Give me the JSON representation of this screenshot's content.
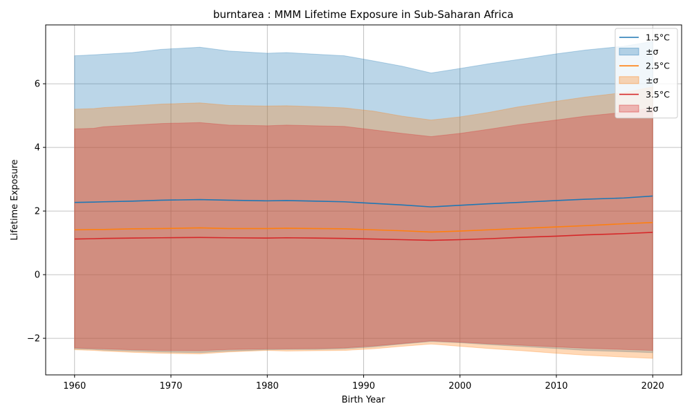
{
  "chart_data": {
    "type": "area",
    "title": "burntarea : MMM Lifetime Exposure in Sub-Saharan Africa",
    "xlabel": "Birth Year",
    "ylabel": "Lifetime Exposure",
    "xlim": [
      1957,
      2023
    ],
    "ylim": [
      -3.15,
      7.85
    ],
    "xticks": [
      1960,
      1970,
      1980,
      1990,
      2000,
      2010,
      2020
    ],
    "yticks": [
      -2,
      0,
      2,
      4,
      6
    ],
    "ytick_labels": [
      "−2",
      "0",
      "2",
      "4",
      "6"
    ],
    "grid": true,
    "legend_position": "top-right",
    "x": [
      1960,
      1962,
      1963,
      1966,
      1969,
      1973,
      1976,
      1980,
      1982,
      1985,
      1988,
      1991,
      1994,
      1997,
      2000,
      2003,
      2006,
      2010,
      2013,
      2017,
      2020
    ],
    "series": [
      {
        "name": "1.5°C",
        "color": "#1f77b4",
        "band_color": "#1f77b4",
        "mean": [
          2.27,
          2.28,
          2.29,
          2.31,
          2.34,
          2.36,
          2.34,
          2.32,
          2.33,
          2.31,
          2.29,
          2.24,
          2.19,
          2.13,
          2.18,
          2.23,
          2.27,
          2.33,
          2.37,
          2.41,
          2.47
        ],
        "upper": [
          6.88,
          6.91,
          6.93,
          6.98,
          7.08,
          7.15,
          7.03,
          6.96,
          6.98,
          6.93,
          6.88,
          6.72,
          6.55,
          6.34,
          6.48,
          6.63,
          6.76,
          6.94,
          7.06,
          7.18,
          7.33
        ],
        "lower": [
          -2.33,
          -2.35,
          -2.37,
          -2.4,
          -2.43,
          -2.45,
          -2.4,
          -2.36,
          -2.35,
          -2.35,
          -2.33,
          -2.27,
          -2.18,
          -2.1,
          -2.14,
          -2.2,
          -2.25,
          -2.32,
          -2.38,
          -2.42,
          -2.45
        ]
      },
      {
        "name": "2.5°C",
        "color": "#ff7f0e",
        "band_color": "#ff7f0e",
        "mean": [
          1.41,
          1.42,
          1.42,
          1.44,
          1.45,
          1.47,
          1.45,
          1.45,
          1.46,
          1.45,
          1.44,
          1.41,
          1.38,
          1.34,
          1.37,
          1.41,
          1.45,
          1.5,
          1.54,
          1.6,
          1.64
        ],
        "upper": [
          5.2,
          5.22,
          5.25,
          5.3,
          5.36,
          5.4,
          5.32,
          5.3,
          5.31,
          5.28,
          5.24,
          5.14,
          4.98,
          4.86,
          4.96,
          5.1,
          5.27,
          5.45,
          5.58,
          5.72,
          5.9
        ],
        "lower": [
          -2.36,
          -2.38,
          -2.4,
          -2.44,
          -2.47,
          -2.49,
          -2.43,
          -2.38,
          -2.4,
          -2.39,
          -2.38,
          -2.33,
          -2.25,
          -2.18,
          -2.25,
          -2.32,
          -2.38,
          -2.47,
          -2.53,
          -2.59,
          -2.63
        ]
      },
      {
        "name": "3.5°C",
        "color": "#d62728",
        "band_color": "#d62728",
        "mean": [
          1.12,
          1.13,
          1.14,
          1.15,
          1.16,
          1.17,
          1.16,
          1.15,
          1.16,
          1.15,
          1.14,
          1.12,
          1.1,
          1.08,
          1.1,
          1.13,
          1.17,
          1.21,
          1.25,
          1.29,
          1.33
        ],
        "upper": [
          4.58,
          4.6,
          4.65,
          4.7,
          4.75,
          4.78,
          4.7,
          4.68,
          4.7,
          4.68,
          4.66,
          4.55,
          4.44,
          4.34,
          4.44,
          4.57,
          4.71,
          4.86,
          4.98,
          5.1,
          5.25
        ],
        "lower": [
          -2.3,
          -2.32,
          -2.33,
          -2.36,
          -2.38,
          -2.39,
          -2.35,
          -2.33,
          -2.33,
          -2.32,
          -2.3,
          -2.24,
          -2.16,
          -2.08,
          -2.12,
          -2.17,
          -2.21,
          -2.27,
          -2.31,
          -2.35,
          -2.38
        ]
      }
    ],
    "band_label": "±σ"
  }
}
